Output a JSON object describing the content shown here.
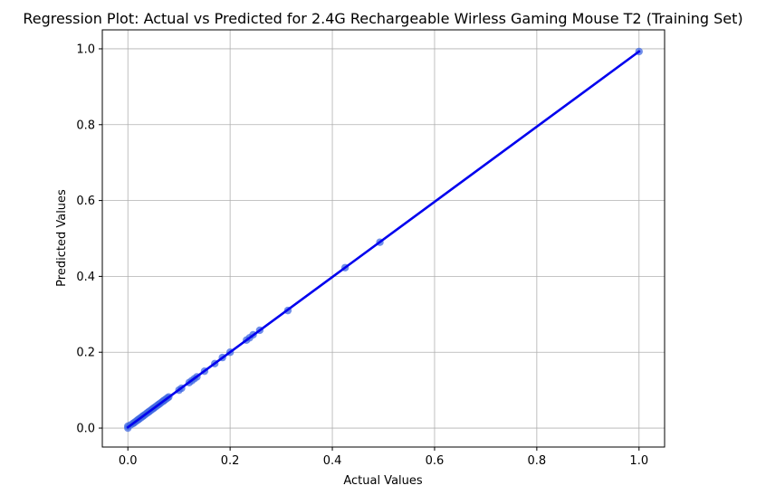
{
  "chart_data": {
    "type": "scatter",
    "title": "Regression Plot: Actual vs Predicted for 2.4G Rechargeable Wirless Gaming Mouse T2 (Training Set)",
    "xlabel": "Actual Values",
    "ylabel": "Predicted Values",
    "xlim": [
      -0.05,
      1.05
    ],
    "ylim": [
      -0.05,
      1.05
    ],
    "xticks": [
      "0.0",
      "0.2",
      "0.4",
      "0.6",
      "0.8",
      "1.0"
    ],
    "yticks": [
      "0.0",
      "0.2",
      "0.4",
      "0.6",
      "0.8",
      "1.0"
    ],
    "grid": true,
    "point_color": "#4169e1",
    "line_color": "#0000ee",
    "regression_line": {
      "x": [
        0.0,
        1.0
      ],
      "y": [
        0.002,
        0.993
      ]
    },
    "points": {
      "x": [
        0.0,
        0.0,
        0.005,
        0.01,
        0.012,
        0.015,
        0.018,
        0.02,
        0.022,
        0.025,
        0.028,
        0.03,
        0.032,
        0.035,
        0.038,
        0.04,
        0.042,
        0.045,
        0.048,
        0.05,
        0.052,
        0.055,
        0.058,
        0.06,
        0.062,
        0.065,
        0.068,
        0.07,
        0.072,
        0.075,
        0.078,
        0.08,
        0.1,
        0.105,
        0.12,
        0.125,
        0.13,
        0.135,
        0.15,
        0.17,
        0.185,
        0.2,
        0.232,
        0.238,
        0.245,
        0.258,
        0.313,
        0.425,
        0.493,
        1.0
      ],
      "y": [
        0.0,
        0.005,
        0.008,
        0.012,
        0.014,
        0.017,
        0.02,
        0.022,
        0.024,
        0.027,
        0.03,
        0.032,
        0.034,
        0.037,
        0.04,
        0.042,
        0.044,
        0.047,
        0.05,
        0.052,
        0.054,
        0.057,
        0.06,
        0.062,
        0.064,
        0.067,
        0.07,
        0.072,
        0.074,
        0.077,
        0.08,
        0.082,
        0.1,
        0.105,
        0.12,
        0.125,
        0.13,
        0.135,
        0.15,
        0.17,
        0.186,
        0.2,
        0.232,
        0.238,
        0.246,
        0.258,
        0.31,
        0.423,
        0.49,
        0.993
      ]
    }
  }
}
